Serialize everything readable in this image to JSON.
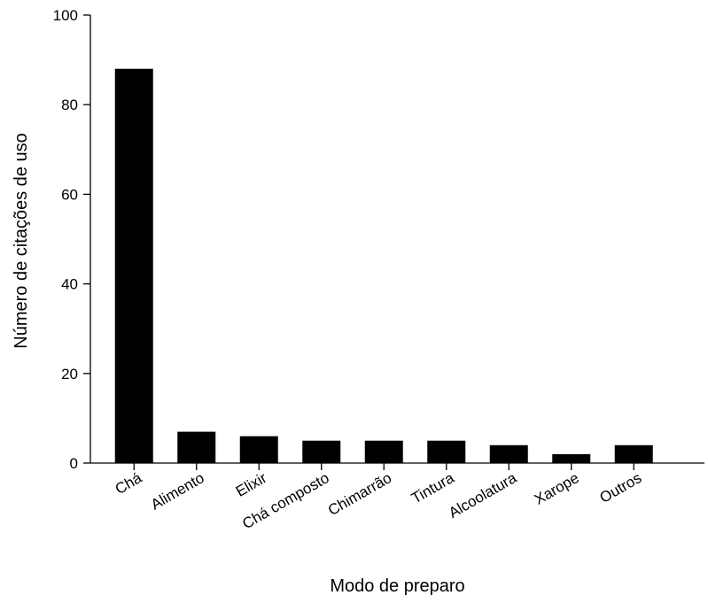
{
  "chart_data": {
    "type": "bar",
    "categories": [
      "Chá",
      "Alimento",
      "Elixir",
      "Chá composto",
      "Chimarrão",
      "Tintura",
      "Alcoolatura",
      "Xarope",
      "Outros"
    ],
    "values": [
      88,
      7,
      6,
      5,
      5,
      5,
      4,
      2,
      4
    ],
    "xlabel": "Modo de preparo",
    "ylabel": "Número de citações de uso",
    "ylim": [
      0,
      100
    ],
    "yticks": [
      0,
      20,
      40,
      60,
      80,
      100
    ],
    "bar_color": "#000000",
    "grid": false,
    "legend": "none"
  }
}
